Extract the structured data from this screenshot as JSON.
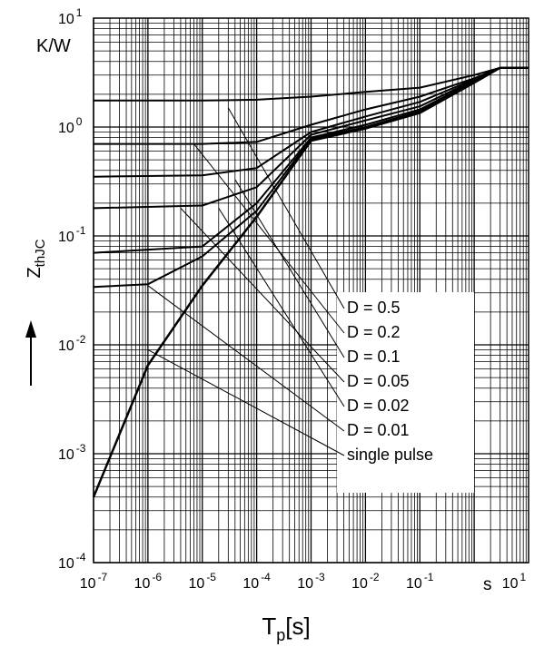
{
  "chart_data": {
    "type": "line",
    "x_scale": "log",
    "y_scale": "log",
    "xlim": [
      1e-07,
      10
    ],
    "ylim": [
      0.0001,
      10
    ],
    "x_ticks": [
      {
        "value": 1e-07,
        "base": "10",
        "exp": "-7"
      },
      {
        "value": 1e-06,
        "base": "10",
        "exp": "-6"
      },
      {
        "value": 1e-05,
        "base": "10",
        "exp": "-5"
      },
      {
        "value": 0.0001,
        "base": "10",
        "exp": "-4"
      },
      {
        "value": 0.001,
        "base": "10",
        "exp": "-3"
      },
      {
        "value": 0.01,
        "base": "10",
        "exp": "-2"
      },
      {
        "value": 0.1,
        "base": "10",
        "exp": "-1"
      },
      {
        "value": 10,
        "base": "10",
        "exp": "1"
      }
    ],
    "y_ticks": [
      {
        "value": 10,
        "base": "10",
        "exp": "1"
      },
      {
        "value": 1,
        "base": "10",
        "exp": "0"
      },
      {
        "value": 0.1,
        "base": "10",
        "exp": "-1"
      },
      {
        "value": 0.01,
        "base": "10",
        "exp": "-2"
      },
      {
        "value": 0.001,
        "base": "10",
        "exp": "-3"
      },
      {
        "value": 0.0001,
        "base": "10",
        "exp": "-4"
      }
    ],
    "x_unit": "s",
    "y_unit": "K/W",
    "xlabel": {
      "main": "T",
      "sub": "p",
      "rest": "[s]"
    },
    "ylabel": {
      "main": "Z",
      "sub": "thJC"
    },
    "grid": true,
    "series": [
      {
        "name": "D = 0.5",
        "label_at": [
          3e-05,
          1.5
        ],
        "points": [
          [
            1e-07,
            1.75
          ],
          [
            1e-05,
            1.75
          ],
          [
            0.0001,
            1.78
          ],
          [
            0.001,
            1.9
          ],
          [
            0.01,
            2.1
          ],
          [
            0.1,
            2.3
          ],
          [
            1,
            3.0
          ],
          [
            3,
            3.5
          ],
          [
            10,
            3.5
          ]
        ]
      },
      {
        "name": "D = 0.2",
        "label_at": [
          7e-06,
          0.7
        ],
        "points": [
          [
            1e-07,
            0.7
          ],
          [
            1e-05,
            0.7
          ],
          [
            0.0001,
            0.73
          ],
          [
            0.001,
            1.05
          ],
          [
            0.01,
            1.45
          ],
          [
            0.1,
            1.9
          ],
          [
            1,
            2.8
          ],
          [
            3,
            3.5
          ],
          [
            10,
            3.5
          ]
        ]
      },
      {
        "name": "D = 0.1",
        "label_at": [
          4e-05,
          0.33
        ],
        "points": [
          [
            1e-07,
            0.35
          ],
          [
            1e-05,
            0.36
          ],
          [
            0.0001,
            0.42
          ],
          [
            0.001,
            0.9
          ],
          [
            0.01,
            1.25
          ],
          [
            0.1,
            1.7
          ],
          [
            1,
            2.75
          ],
          [
            3,
            3.5
          ],
          [
            10,
            3.5
          ]
        ]
      },
      {
        "name": "D = 0.05",
        "label_at": [
          4e-06,
          0.18
        ],
        "points": [
          [
            1e-07,
            0.18
          ],
          [
            1e-05,
            0.19
          ],
          [
            0.0001,
            0.28
          ],
          [
            0.001,
            0.85
          ],
          [
            0.01,
            1.15
          ],
          [
            0.1,
            1.55
          ],
          [
            1,
            2.7
          ],
          [
            3,
            3.5
          ],
          [
            10,
            3.5
          ]
        ]
      },
      {
        "name": "D = 0.02",
        "label_at": [
          2e-05,
          0.18
        ],
        "points": [
          [
            1e-07,
            0.07
          ],
          [
            1e-05,
            0.08
          ],
          [
            0.0001,
            0.2
          ],
          [
            0.001,
            0.8
          ],
          [
            0.01,
            1.05
          ],
          [
            0.1,
            1.45
          ],
          [
            1,
            2.65
          ],
          [
            3,
            3.5
          ],
          [
            10,
            3.5
          ]
        ]
      },
      {
        "name": "D = 0.01",
        "label_at": [
          1e-06,
          0.035
        ],
        "points": [
          [
            1e-07,
            0.034
          ],
          [
            1e-06,
            0.036
          ],
          [
            1e-05,
            0.065
          ],
          [
            0.0001,
            0.17
          ],
          [
            0.001,
            0.78
          ],
          [
            0.01,
            1.0
          ],
          [
            0.1,
            1.4
          ],
          [
            1,
            2.6
          ],
          [
            3,
            3.5
          ],
          [
            10,
            3.5
          ]
        ]
      },
      {
        "name": "single pulse",
        "label_at": [
          1e-06,
          0.009
        ],
        "points": [
          [
            1e-07,
            0.0004
          ],
          [
            1e-06,
            0.0065
          ],
          [
            1e-05,
            0.035
          ],
          [
            0.0001,
            0.15
          ],
          [
            0.001,
            0.75
          ],
          [
            0.01,
            0.97
          ],
          [
            0.1,
            1.35
          ],
          [
            1,
            2.55
          ],
          [
            3,
            3.5
          ],
          [
            10,
            3.5
          ]
        ]
      }
    ]
  }
}
